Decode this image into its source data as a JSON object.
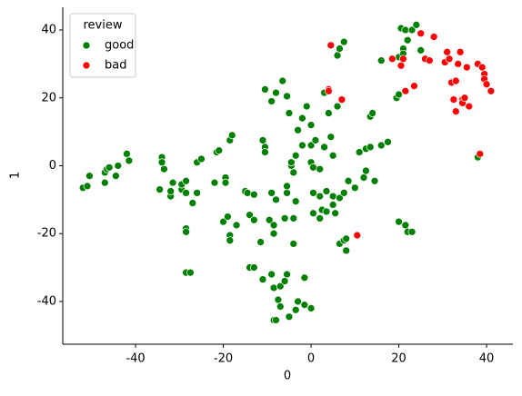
{
  "chart_data": {
    "type": "scatter",
    "x_label": "0",
    "y_label": "1",
    "xlim": [
      -56.6,
      46
    ],
    "ylim": [
      -52.6,
      46.7
    ],
    "xticks": [
      -40,
      -20,
      0,
      20,
      40
    ],
    "yticks": [
      -40,
      -20,
      0,
      20,
      40
    ],
    "legend_title": "review",
    "legend_position": "upper-left",
    "series": [
      {
        "name": "good",
        "color": "#008000",
        "x": [
          -52,
          -51,
          -50.5,
          -47,
          -47,
          -46.5,
          -46,
          -44.5,
          -44,
          -42,
          -41.5,
          -34.5,
          -34,
          -34,
          -33.5,
          -32,
          -32,
          -31.5,
          -29.5,
          -29.5,
          -28.5,
          -28.5,
          -27,
          -26,
          -28.5,
          -28.5,
          -28.5,
          -27.5,
          -26,
          -25,
          -22,
          -21.5,
          -21,
          -20,
          -19.5,
          -19.5,
          -19,
          -18.5,
          -18,
          -18.5,
          -18.5,
          -17,
          -15,
          -14.5,
          -14,
          -14,
          -13,
          -13,
          -13,
          -11.5,
          -11,
          -11,
          -10.5,
          -10.5,
          -10.5,
          -9.5,
          -9,
          -9,
          -9,
          -8.5,
          -8.5,
          -8,
          -8.5,
          -8.5,
          -8,
          -8,
          -7.5,
          -7,
          -7,
          -6.5,
          -6,
          -5.5,
          -6,
          -5.5,
          -5.5,
          -5.5,
          -5,
          -5,
          -4,
          -3.5,
          -4,
          -4,
          -4.5,
          -4.5,
          -3.5,
          -3.5,
          -3,
          -3,
          -2,
          -2,
          -1.5,
          -1.5,
          -1,
          0,
          0,
          0,
          0,
          0.5,
          0.5,
          0.5,
          1,
          2,
          2,
          2,
          2.5,
          3,
          3,
          3.5,
          3.5,
          4,
          4.5,
          5,
          5,
          5,
          5.5,
          6,
          6,
          6.5,
          6.5,
          6.5,
          7.5,
          7.5,
          7.5,
          8,
          8,
          8.5,
          10,
          11,
          12,
          12.5,
          12.5,
          13.5,
          13.5,
          14,
          14.5,
          16,
          16,
          17.5,
          19.5,
          20,
          20,
          20,
          20.5,
          21,
          21,
          21.5,
          21.5,
          22,
          22,
          23,
          23,
          24,
          25,
          38
        ],
        "values": [
          -6.5,
          -6,
          -3,
          -5,
          -2,
          -1,
          -0.5,
          -3,
          0,
          3.5,
          1.5,
          -7,
          2.5,
          1,
          -1,
          -9,
          -7.5,
          -5,
          -7,
          -5.5,
          -8,
          -4.5,
          -11,
          -8,
          -18.5,
          -19.5,
          -31.5,
          -31.5,
          1,
          2,
          -5,
          4,
          4.5,
          -16.5,
          -3.5,
          -5,
          -15,
          7.5,
          9,
          -20.5,
          -22,
          -17.5,
          -7.5,
          -8,
          -14.5,
          -30,
          -30,
          -8.5,
          -16,
          -22.5,
          -33.5,
          7.5,
          5.5,
          4,
          22.5,
          -16,
          19,
          -8,
          -32,
          -36,
          -45.5,
          -45.5,
          -17.5,
          -20,
          -10,
          21.5,
          -39.5,
          -35.5,
          -41.5,
          25,
          -34,
          20.5,
          -15.5,
          -8,
          -6,
          -32,
          -44.5,
          15.5,
          -2,
          -10.5,
          -15.5,
          -23,
          0,
          1,
          3,
          -42.5,
          10.5,
          -40,
          6,
          14,
          -33,
          -41,
          17.5,
          -42,
          12,
          1,
          6,
          -8,
          -0.5,
          -14,
          7.5,
          -1,
          -9,
          -15.5,
          -13,
          5.5,
          21.5,
          -7.5,
          -13.5,
          15.5,
          8.5,
          -9,
          -11.5,
          3,
          -14,
          17.5,
          32.5,
          -23,
          34.5,
          -9.5,
          36.5,
          -8,
          -22,
          -25,
          -21.5,
          -4.5,
          -6.5,
          4,
          -3.5,
          -1.5,
          5,
          5.5,
          14.5,
          15.5,
          -4.5,
          31,
          6,
          7,
          20,
          -16.5,
          21,
          32,
          40.5,
          34.5,
          33,
          40,
          -17.5,
          -19.5,
          37,
          -19.5,
          40,
          41.5,
          34,
          2.5
        ]
      },
      {
        "name": "bad",
        "color": "#ff0000",
        "x": [
          4.5,
          4,
          4,
          7,
          10.5,
          18.5,
          20.5,
          21,
          21.5,
          23.5,
          25,
          26,
          27,
          28,
          30.5,
          31,
          31.5,
          32,
          32.5,
          33,
          33,
          33.5,
          34,
          34.5,
          34.5,
          35,
          35.5,
          36,
          38,
          38.5,
          39,
          39.5,
          39.5,
          40,
          41
        ],
        "values": [
          35.5,
          22.5,
          22,
          19.5,
          -20.5,
          31.5,
          29.5,
          31.5,
          22,
          23.5,
          39,
          31.5,
          31,
          38,
          30.5,
          33.5,
          31.5,
          24.5,
          19.5,
          16,
          25,
          30,
          33.5,
          19.5,
          18.5,
          20,
          29,
          17.5,
          30,
          3.5,
          29,
          27,
          25.5,
          24,
          22
        ]
      }
    ]
  }
}
